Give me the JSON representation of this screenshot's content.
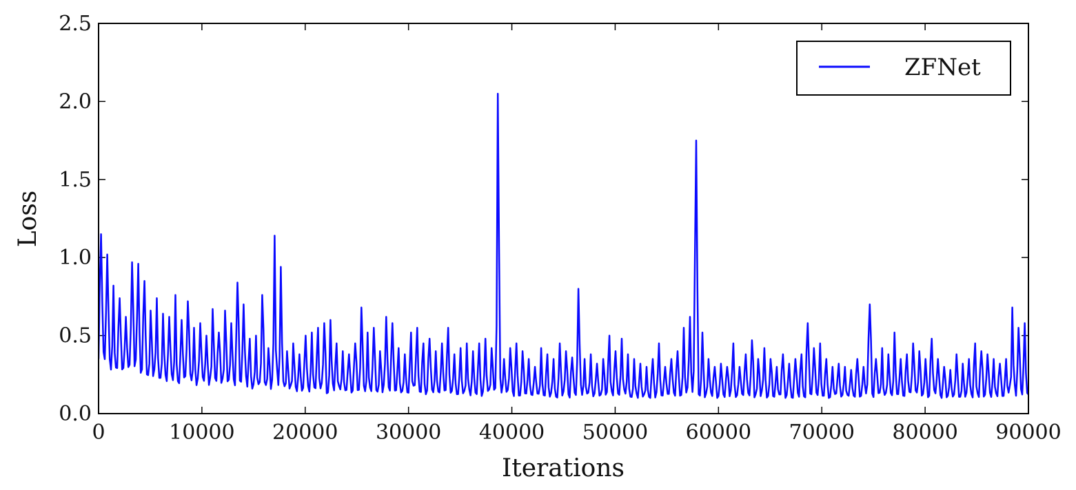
{
  "chart_data": {
    "type": "line",
    "title": "",
    "xlabel": "Iterations",
    "ylabel": "Loss",
    "xlim": [
      0,
      90000
    ],
    "ylim": [
      0.0,
      2.5
    ],
    "x_ticks": [
      0,
      10000,
      20000,
      30000,
      40000,
      50000,
      60000,
      70000,
      80000,
      90000
    ],
    "x_tick_labels": [
      "0",
      "10000",
      "20000",
      "30000",
      "40000",
      "50000",
      "60000",
      "70000",
      "80000",
      "90000"
    ],
    "y_ticks": [
      0.0,
      0.5,
      1.0,
      1.5,
      2.0,
      2.5
    ],
    "y_tick_labels": [
      "0.0",
      "0.5",
      "1.0",
      "1.5",
      "2.0",
      "2.5"
    ],
    "grid": false,
    "legend_position": "top-right",
    "series": [
      {
        "name": "ZFNet",
        "color": "#0a0aff",
        "x": [
          0,
          600,
          1200,
          1800,
          2400,
          3000,
          3600,
          4200,
          4800,
          5400,
          6000,
          6600,
          7200,
          7800,
          8400,
          9000,
          9600,
          10200,
          10800,
          11400,
          12000,
          12600,
          13200,
          13800,
          14400,
          15000,
          15600,
          16200,
          16800,
          17400,
          18000,
          18600,
          19200,
          19800,
          20400,
          21000,
          21600,
          22200,
          22800,
          23400,
          24000,
          24600,
          25200,
          25800,
          26400,
          27000,
          27600,
          28200,
          28800,
          29400,
          30000,
          30600,
          31200,
          31800,
          32400,
          33000,
          33600,
          34200,
          34800,
          35400,
          36000,
          36600,
          37200,
          37800,
          38400,
          39000,
          39600,
          40200,
          40800,
          41400,
          42000,
          42600,
          43200,
          43800,
          44400,
          45000,
          45600,
          46200,
          46800,
          47400,
          48000,
          48600,
          49200,
          49800,
          50400,
          51000,
          51600,
          52200,
          52800,
          53400,
          54000,
          54600,
          55200,
          55800,
          56400,
          57000,
          57600,
          58200,
          58800,
          59400,
          60000,
          60600,
          61200,
          61800,
          62400,
          63000,
          63600,
          64200,
          64800,
          65400,
          66000,
          66600,
          67200,
          67800,
          68400,
          69000,
          69600,
          70200,
          70800,
          71400,
          72000,
          72600,
          73200,
          73800,
          74400,
          75000,
          75600,
          76200,
          76800,
          77400,
          78000,
          78600,
          79200,
          79800,
          80400,
          81000,
          81600,
          82200,
          82800,
          83400,
          84000,
          84600,
          85200,
          85800,
          86400,
          87000,
          87600,
          88200,
          88800,
          89400,
          90000
        ],
        "min": [
          0.35,
          0.3,
          0.28,
          0.26,
          0.25,
          0.24,
          0.24,
          0.23,
          0.22,
          0.22,
          0.21,
          0.2,
          0.2,
          0.19,
          0.19,
          0.18,
          0.18,
          0.18,
          0.17,
          0.17,
          0.17,
          0.16,
          0.16,
          0.16,
          0.16,
          0.15,
          0.15,
          0.15,
          0.15,
          0.15,
          0.14,
          0.14,
          0.14,
          0.14,
          0.14,
          0.14,
          0.13,
          0.13,
          0.13,
          0.13,
          0.13,
          0.13,
          0.13,
          0.13,
          0.12,
          0.12,
          0.12,
          0.12,
          0.12,
          0.12,
          0.12,
          0.12,
          0.12,
          0.12,
          0.12,
          0.11,
          0.11,
          0.11,
          0.11,
          0.11,
          0.11,
          0.11,
          0.11,
          0.11,
          0.11,
          0.11,
          0.11,
          0.11,
          0.11,
          0.11,
          0.11,
          0.1,
          0.1,
          0.1,
          0.1,
          0.1,
          0.1,
          0.1,
          0.1,
          0.1,
          0.1,
          0.1,
          0.1,
          0.1,
          0.1,
          0.1,
          0.1,
          0.1,
          0.1,
          0.1,
          0.1,
          0.1,
          0.1,
          0.1,
          0.1,
          0.1,
          0.1,
          0.1,
          0.1,
          0.1,
          0.1,
          0.1,
          0.1,
          0.1,
          0.1,
          0.1,
          0.1,
          0.1,
          0.1,
          0.1,
          0.1,
          0.1,
          0.1,
          0.1,
          0.1,
          0.1,
          0.1,
          0.1,
          0.1,
          0.1,
          0.1,
          0.1,
          0.1,
          0.1,
          0.1,
          0.1,
          0.1,
          0.1,
          0.1,
          0.1,
          0.1,
          0.1,
          0.1,
          0.1,
          0.1,
          0.1,
          0.1,
          0.1,
          0.1,
          0.1,
          0.1,
          0.1,
          0.1,
          0.1,
          0.1,
          0.1,
          0.1,
          0.1,
          0.1,
          0.1,
          0.1
        ],
        "max": [
          1.15,
          1.02,
          0.82,
          0.74,
          0.62,
          0.97,
          0.96,
          0.85,
          0.66,
          0.74,
          0.64,
          0.62,
          0.76,
          0.6,
          0.72,
          0.55,
          0.58,
          0.5,
          0.67,
          0.52,
          0.66,
          0.58,
          0.84,
          0.7,
          0.48,
          0.5,
          0.76,
          0.42,
          1.14,
          0.94,
          0.4,
          0.45,
          0.38,
          0.5,
          0.52,
          0.55,
          0.58,
          0.6,
          0.45,
          0.4,
          0.38,
          0.45,
          0.68,
          0.52,
          0.55,
          0.4,
          0.62,
          0.58,
          0.42,
          0.38,
          0.52,
          0.55,
          0.45,
          0.48,
          0.4,
          0.45,
          0.55,
          0.38,
          0.42,
          0.45,
          0.4,
          0.45,
          0.48,
          0.42,
          2.05,
          0.35,
          0.42,
          0.45,
          0.4,
          0.35,
          0.3,
          0.42,
          0.38,
          0.35,
          0.45,
          0.4,
          0.36,
          0.8,
          0.35,
          0.38,
          0.32,
          0.35,
          0.5,
          0.4,
          0.48,
          0.38,
          0.35,
          0.32,
          0.3,
          0.35,
          0.45,
          0.3,
          0.35,
          0.4,
          0.55,
          0.62,
          1.75,
          0.52,
          0.35,
          0.3,
          0.32,
          0.3,
          0.45,
          0.3,
          0.38,
          0.47,
          0.35,
          0.42,
          0.35,
          0.3,
          0.38,
          0.32,
          0.35,
          0.38,
          0.58,
          0.42,
          0.45,
          0.35,
          0.3,
          0.32,
          0.3,
          0.28,
          0.35,
          0.3,
          0.7,
          0.35,
          0.42,
          0.38,
          0.52,
          0.35,
          0.38,
          0.45,
          0.4,
          0.35,
          0.48,
          0.35,
          0.3,
          0.28,
          0.38,
          0.32,
          0.35,
          0.45,
          0.4,
          0.38,
          0.35,
          0.32,
          0.35,
          0.68,
          0.55,
          0.58,
          0.35
        ]
      }
    ]
  }
}
